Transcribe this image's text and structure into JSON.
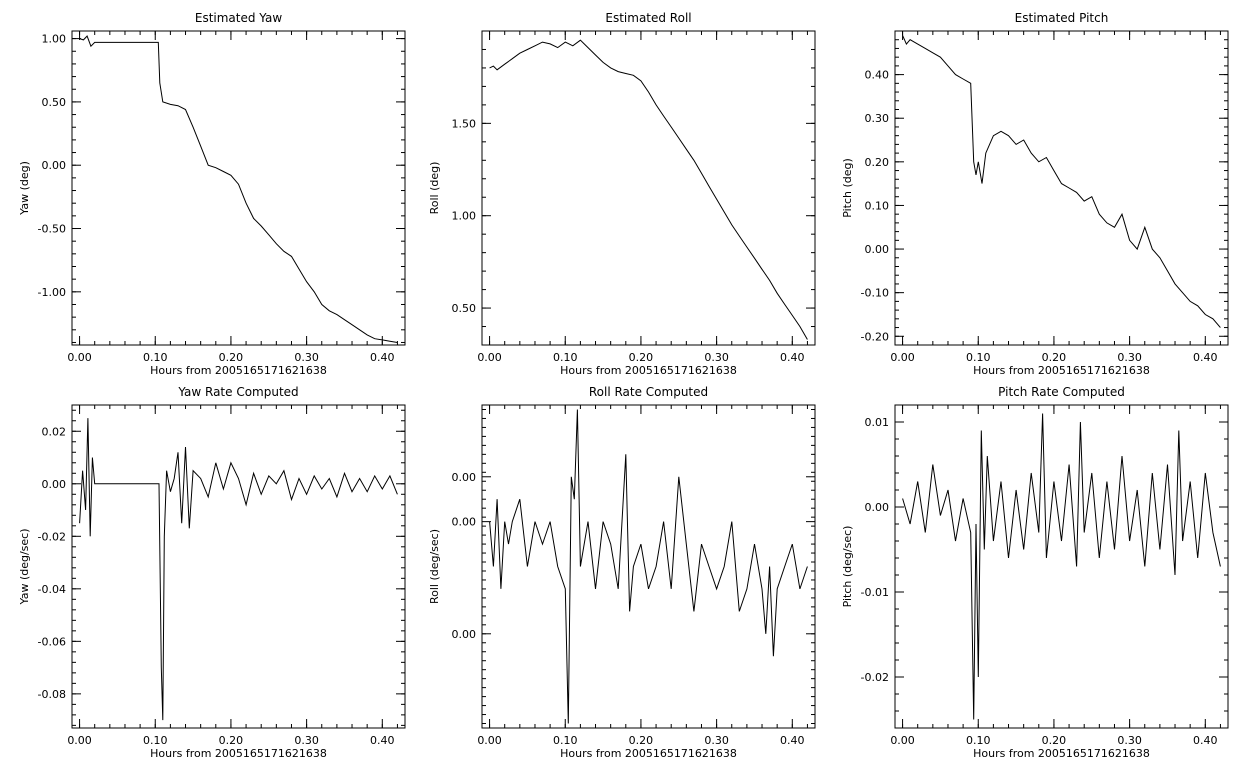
{
  "colors": {
    "background": "#ffffff",
    "line": "#000000",
    "axis": "#000000"
  },
  "chart_data": [
    {
      "id": "yaw",
      "type": "line",
      "title": "Estimated Yaw",
      "xlabel": "Hours from 2005165171621638",
      "ylabel": "Yaw (deg)",
      "xlim": [
        -0.01,
        0.43
      ],
      "ylim": [
        -1.42,
        1.06
      ],
      "xticks": [
        0.0,
        0.1,
        0.2,
        0.3,
        0.4
      ],
      "xtick_labels": [
        "0.00",
        "0.10",
        "0.20",
        "0.30",
        "0.40"
      ],
      "yticks": [
        1.0,
        0.5,
        0.0,
        -0.5,
        -1.0
      ],
      "ytick_labels": [
        "1.00",
        "0.50",
        "0.00",
        "-0.50",
        "-1.00"
      ],
      "x": [
        0.0,
        0.005,
        0.01,
        0.015,
        0.02,
        0.03,
        0.05,
        0.08,
        0.104,
        0.106,
        0.11,
        0.12,
        0.13,
        0.14,
        0.15,
        0.16,
        0.17,
        0.18,
        0.19,
        0.2,
        0.21,
        0.22,
        0.23,
        0.24,
        0.25,
        0.26,
        0.27,
        0.28,
        0.29,
        0.3,
        0.31,
        0.32,
        0.33,
        0.34,
        0.35,
        0.36,
        0.37,
        0.38,
        0.39,
        0.4,
        0.41,
        0.42
      ],
      "y": [
        1.0,
        0.99,
        1.02,
        0.94,
        0.97,
        0.97,
        0.97,
        0.97,
        0.97,
        0.65,
        0.5,
        0.48,
        0.47,
        0.44,
        0.3,
        0.15,
        0.0,
        -0.02,
        -0.05,
        -0.08,
        -0.15,
        -0.3,
        -0.42,
        -0.48,
        -0.55,
        -0.62,
        -0.68,
        -0.72,
        -0.82,
        -0.92,
        -1.0,
        -1.1,
        -1.15,
        -1.18,
        -1.22,
        -1.26,
        -1.3,
        -1.34,
        -1.37,
        -1.38,
        -1.39,
        -1.4
      ]
    },
    {
      "id": "roll",
      "type": "line",
      "title": "Estimated Roll",
      "xlabel": "Hours from 2005165171621638",
      "ylabel": "Roll (deg)",
      "xlim": [
        -0.01,
        0.43
      ],
      "ylim": [
        0.3,
        2.0
      ],
      "xticks": [
        0.0,
        0.1,
        0.2,
        0.3,
        0.4
      ],
      "xtick_labels": [
        "0.00",
        "0.10",
        "0.20",
        "0.30",
        "0.40"
      ],
      "yticks": [
        1.5,
        1.0,
        0.5
      ],
      "ytick_labels": [
        "1.50",
        "1.00",
        "0.50"
      ],
      "x": [
        0.0,
        0.005,
        0.01,
        0.02,
        0.03,
        0.04,
        0.05,
        0.06,
        0.07,
        0.08,
        0.09,
        0.1,
        0.11,
        0.12,
        0.13,
        0.14,
        0.15,
        0.16,
        0.17,
        0.18,
        0.19,
        0.2,
        0.21,
        0.22,
        0.23,
        0.24,
        0.25,
        0.26,
        0.27,
        0.28,
        0.29,
        0.3,
        0.31,
        0.32,
        0.33,
        0.34,
        0.35,
        0.36,
        0.37,
        0.38,
        0.39,
        0.4,
        0.41,
        0.42
      ],
      "y": [
        1.8,
        1.81,
        1.79,
        1.82,
        1.85,
        1.88,
        1.9,
        1.92,
        1.94,
        1.93,
        1.91,
        1.94,
        1.92,
        1.95,
        1.91,
        1.87,
        1.83,
        1.8,
        1.78,
        1.77,
        1.76,
        1.73,
        1.67,
        1.6,
        1.54,
        1.48,
        1.42,
        1.36,
        1.3,
        1.23,
        1.16,
        1.09,
        1.02,
        0.95,
        0.89,
        0.83,
        0.77,
        0.71,
        0.65,
        0.58,
        0.52,
        0.46,
        0.4,
        0.33
      ]
    },
    {
      "id": "pitch",
      "type": "line",
      "title": "Estimated Pitch",
      "xlabel": "Hours from 2005165171621638",
      "ylabel": "Pitch (deg)",
      "xlim": [
        -0.01,
        0.43
      ],
      "ylim": [
        -0.22,
        0.5
      ],
      "xticks": [
        0.0,
        0.1,
        0.2,
        0.3,
        0.4
      ],
      "xtick_labels": [
        "0.00",
        "0.10",
        "0.20",
        "0.30",
        "0.40"
      ],
      "yticks": [
        0.4,
        0.3,
        0.2,
        0.1,
        0.0,
        -0.1,
        -0.2
      ],
      "ytick_labels": [
        "0.40",
        "0.30",
        "0.20",
        "0.10",
        "0.00",
        "-0.10",
        "-0.20"
      ],
      "x": [
        0.0,
        0.005,
        0.01,
        0.02,
        0.03,
        0.04,
        0.05,
        0.06,
        0.07,
        0.08,
        0.09,
        0.094,
        0.097,
        0.1,
        0.105,
        0.11,
        0.12,
        0.13,
        0.14,
        0.15,
        0.16,
        0.17,
        0.18,
        0.19,
        0.2,
        0.21,
        0.22,
        0.23,
        0.24,
        0.25,
        0.26,
        0.27,
        0.28,
        0.29,
        0.3,
        0.31,
        0.32,
        0.33,
        0.34,
        0.35,
        0.36,
        0.37,
        0.38,
        0.39,
        0.4,
        0.41,
        0.42
      ],
      "y": [
        0.49,
        0.47,
        0.48,
        0.47,
        0.46,
        0.45,
        0.44,
        0.42,
        0.4,
        0.39,
        0.38,
        0.2,
        0.17,
        0.2,
        0.15,
        0.22,
        0.26,
        0.27,
        0.26,
        0.24,
        0.25,
        0.22,
        0.2,
        0.21,
        0.18,
        0.15,
        0.14,
        0.13,
        0.11,
        0.12,
        0.08,
        0.06,
        0.05,
        0.08,
        0.02,
        0.0,
        0.05,
        0.0,
        -0.02,
        -0.05,
        -0.08,
        -0.1,
        -0.12,
        -0.13,
        -0.15,
        -0.16,
        -0.18
      ]
    },
    {
      "id": "yaw-rate",
      "type": "line",
      "title": "Yaw Rate Computed",
      "xlabel": "Hours from 2005165171621638",
      "ylabel": "Yaw (deg/sec)",
      "xlim": [
        -0.01,
        0.43
      ],
      "ylim": [
        -0.093,
        0.03
      ],
      "xticks": [
        0.0,
        0.1,
        0.2,
        0.3,
        0.4
      ],
      "xtick_labels": [
        "0.00",
        "0.10",
        "0.20",
        "0.30",
        "0.40"
      ],
      "yticks": [
        0.02,
        0.0,
        -0.02,
        -0.04,
        -0.06,
        -0.08
      ],
      "ytick_labels": [
        "0.02",
        "0.00",
        "-0.02",
        "-0.04",
        "-0.06",
        "-0.08"
      ],
      "x": [
        0.0,
        0.004,
        0.008,
        0.011,
        0.014,
        0.017,
        0.02,
        0.05,
        0.08,
        0.105,
        0.108,
        0.11,
        0.112,
        0.115,
        0.12,
        0.125,
        0.13,
        0.135,
        0.14,
        0.145,
        0.15,
        0.16,
        0.17,
        0.18,
        0.19,
        0.2,
        0.21,
        0.22,
        0.23,
        0.24,
        0.25,
        0.26,
        0.27,
        0.28,
        0.29,
        0.3,
        0.31,
        0.32,
        0.33,
        0.34,
        0.35,
        0.36,
        0.37,
        0.38,
        0.39,
        0.4,
        0.41,
        0.42
      ],
      "y": [
        -0.015,
        0.005,
        -0.01,
        0.025,
        -0.02,
        0.01,
        0.0,
        0.0,
        0.0,
        0.0,
        -0.07,
        -0.09,
        -0.02,
        0.005,
        -0.003,
        0.002,
        0.012,
        -0.015,
        0.014,
        -0.017,
        0.005,
        0.002,
        -0.005,
        0.008,
        -0.002,
        0.008,
        0.002,
        -0.008,
        0.004,
        -0.004,
        0.003,
        0.0,
        0.005,
        -0.006,
        0.002,
        -0.004,
        0.003,
        -0.002,
        0.002,
        -0.005,
        0.004,
        -0.003,
        0.002,
        -0.003,
        0.003,
        -0.002,
        0.003,
        -0.004
      ]
    },
    {
      "id": "roll-rate",
      "type": "line",
      "title": "Roll Rate Computed",
      "xlabel": "Hours from 2005165171621638",
      "ylabel": "Roll (deg/sec)",
      "xlim": [
        -0.01,
        0.43
      ],
      "ylim": [
        -0.0092,
        0.0052
      ],
      "xticks": [
        0.0,
        0.1,
        0.2,
        0.3,
        0.4
      ],
      "xtick_labels": [
        "0.00",
        "0.10",
        "0.20",
        "0.30",
        "0.40"
      ],
      "yticks": [
        0.002,
        -0.0,
        -0.005
      ],
      "ytick_labels": [
        "0.00",
        "0.00",
        "0.00"
      ],
      "x": [
        0.0,
        0.005,
        0.01,
        0.015,
        0.02,
        0.025,
        0.03,
        0.04,
        0.05,
        0.06,
        0.07,
        0.08,
        0.09,
        0.1,
        0.104,
        0.108,
        0.112,
        0.116,
        0.12,
        0.13,
        0.14,
        0.15,
        0.16,
        0.17,
        0.18,
        0.185,
        0.19,
        0.2,
        0.21,
        0.22,
        0.23,
        0.24,
        0.25,
        0.26,
        0.27,
        0.28,
        0.29,
        0.3,
        0.31,
        0.32,
        0.33,
        0.34,
        0.35,
        0.36,
        0.365,
        0.37,
        0.375,
        0.38,
        0.39,
        0.4,
        0.41,
        0.42
      ],
      "y": [
        0.0,
        -0.002,
        0.001,
        -0.003,
        0.0,
        -0.001,
        0.0,
        0.001,
        -0.002,
        0.0,
        -0.001,
        0.0,
        -0.002,
        -0.003,
        -0.009,
        0.002,
        0.001,
        0.005,
        -0.002,
        0.0,
        -0.003,
        0.0,
        -0.001,
        -0.003,
        0.003,
        -0.004,
        -0.002,
        -0.001,
        -0.003,
        -0.002,
        0.0,
        -0.003,
        0.002,
        -0.001,
        -0.004,
        -0.001,
        -0.002,
        -0.003,
        -0.002,
        0.0,
        -0.004,
        -0.003,
        -0.001,
        -0.003,
        -0.005,
        -0.002,
        -0.006,
        -0.003,
        -0.002,
        -0.001,
        -0.003,
        -0.002
      ]
    },
    {
      "id": "pitch-rate",
      "type": "line",
      "title": "Pitch Rate Computed",
      "xlabel": "Hours from 2005165171621638",
      "ylabel": "Pitch (deg/sec)",
      "xlim": [
        -0.01,
        0.43
      ],
      "ylim": [
        -0.026,
        0.012
      ],
      "xticks": [
        0.0,
        0.1,
        0.2,
        0.3,
        0.4
      ],
      "xtick_labels": [
        "0.00",
        "0.10",
        "0.20",
        "0.30",
        "0.40"
      ],
      "yticks": [
        0.01,
        0.0,
        -0.01,
        -0.02
      ],
      "ytick_labels": [
        "0.01",
        "0.00",
        "-0.01",
        "-0.02"
      ],
      "x": [
        0.0,
        0.01,
        0.02,
        0.03,
        0.04,
        0.05,
        0.06,
        0.07,
        0.08,
        0.09,
        0.094,
        0.097,
        0.1,
        0.104,
        0.108,
        0.112,
        0.12,
        0.13,
        0.14,
        0.15,
        0.16,
        0.17,
        0.18,
        0.185,
        0.19,
        0.2,
        0.21,
        0.22,
        0.23,
        0.235,
        0.24,
        0.25,
        0.26,
        0.27,
        0.28,
        0.29,
        0.3,
        0.31,
        0.32,
        0.33,
        0.34,
        0.35,
        0.36,
        0.365,
        0.37,
        0.38,
        0.39,
        0.4,
        0.41,
        0.42
      ],
      "y": [
        0.001,
        -0.002,
        0.003,
        -0.003,
        0.005,
        -0.001,
        0.002,
        -0.004,
        0.001,
        -0.003,
        -0.025,
        -0.002,
        -0.02,
        0.009,
        -0.005,
        0.006,
        -0.004,
        0.003,
        -0.006,
        0.002,
        -0.005,
        0.004,
        -0.003,
        0.011,
        -0.006,
        0.003,
        -0.004,
        0.005,
        -0.007,
        0.01,
        -0.003,
        0.004,
        -0.006,
        0.003,
        -0.005,
        0.006,
        -0.004,
        0.002,
        -0.007,
        0.004,
        -0.005,
        0.005,
        -0.008,
        0.009,
        -0.004,
        0.003,
        -0.006,
        0.004,
        -0.003,
        -0.007
      ]
    }
  ]
}
